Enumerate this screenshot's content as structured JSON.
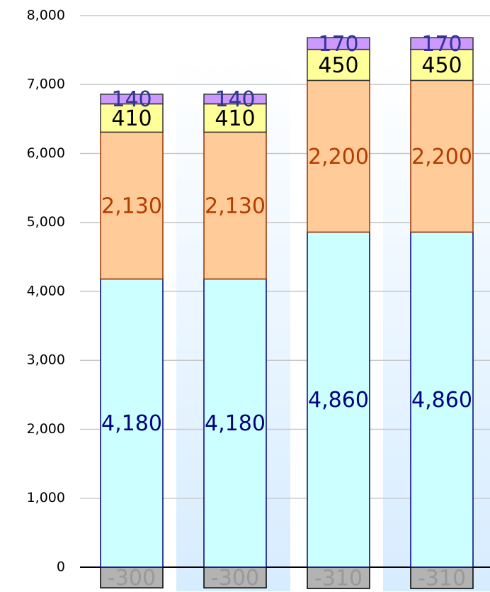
{
  "chart_data": {
    "type": "stacked_bar",
    "categories": [
      null,
      null,
      null,
      null
    ],
    "series": [
      {
        "color": "#b3b3b3",
        "stroke": "#000000",
        "label_color": "#999999",
        "values": [
          -300,
          -300,
          -310,
          -310
        ],
        "value_labels": [
          "-300",
          "-300",
          "-310",
          "-310"
        ]
      },
      {
        "color": "#ccffff",
        "stroke": "#000080",
        "label_color": "#000080",
        "values": [
          4180,
          4180,
          4860,
          4860
        ],
        "value_labels": [
          "4,180",
          "4,180",
          "4,860",
          "4,860"
        ]
      },
      {
        "color": "#ffcc99",
        "stroke": "#993300",
        "label_color": "#b33c00",
        "values": [
          2130,
          2130,
          2200,
          2200
        ],
        "value_labels": [
          "2,130",
          "2,130",
          "2,200",
          "2,200"
        ]
      },
      {
        "color": "#ffff99",
        "stroke": "#333333",
        "label_color": "#000000",
        "values": [
          410,
          410,
          450,
          450
        ]
      },
      {
        "color": "#cc99ff",
        "stroke": "#333333",
        "label_color": "#333399",
        "values": [
          140,
          140,
          170,
          170
        ]
      }
    ],
    "ylim": [
      -350,
      8000
    ],
    "yticks": [
      0,
      {
        "value": 1000,
        "label": "1,000"
      },
      {
        "value": 2000,
        "label": "2,000"
      },
      {
        "value": 3000,
        "label": "3,000"
      },
      {
        "value": 4000,
        "label": "4,000"
      },
      {
        "value": 5000,
        "label": "5,000"
      },
      {
        "value": 6000,
        "label": "6,000"
      },
      {
        "value": 7000,
        "label": "7,000"
      },
      {
        "value": 8000,
        "label": "8,000"
      }
    ],
    "grid": true
  }
}
